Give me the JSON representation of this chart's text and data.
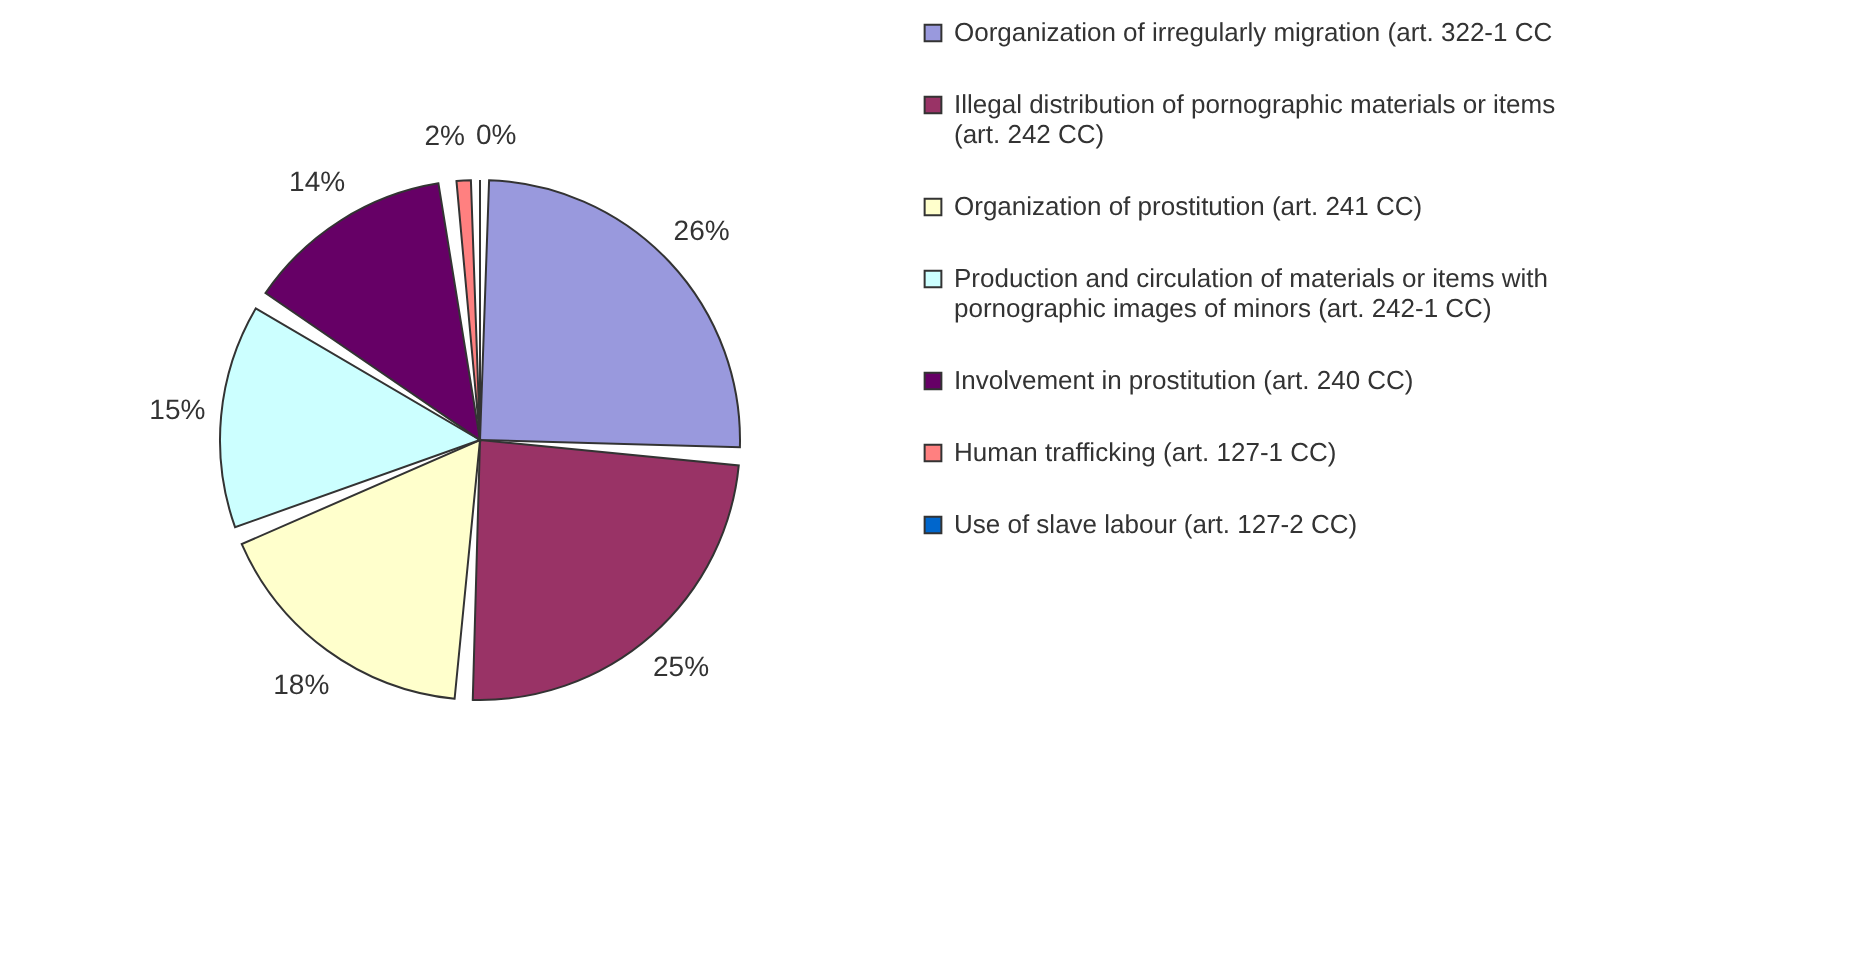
{
  "chart_data": {
    "type": "pie",
    "categories": [
      "Oorganization of irregularly migration (art. 322-1 CC",
      "Illegal distribution of pornographic materials or items (art. 242 CC)",
      "Organization of prostitution (art. 241 CC)",
      "Production and circulation of materials or items with pornographic images of minors (art. 242-1 CC)",
      "Involvement in prostitution (art. 240 CC)",
      "Human trafficking (art. 127-1 CC)",
      "Use of slave labour (art. 127-2 CC)"
    ],
    "values": [
      26,
      25,
      18,
      15,
      14,
      2,
      0
    ],
    "colors": [
      "#9999dd",
      "#993366",
      "#ffffcc",
      "#ccffff",
      "#660066",
      "#ff8080",
      "#0066cc"
    ],
    "value_labels": [
      "26%",
      "25%",
      "18%",
      "15%",
      "14%",
      "2%",
      "0%"
    ],
    "legend": "right"
  }
}
